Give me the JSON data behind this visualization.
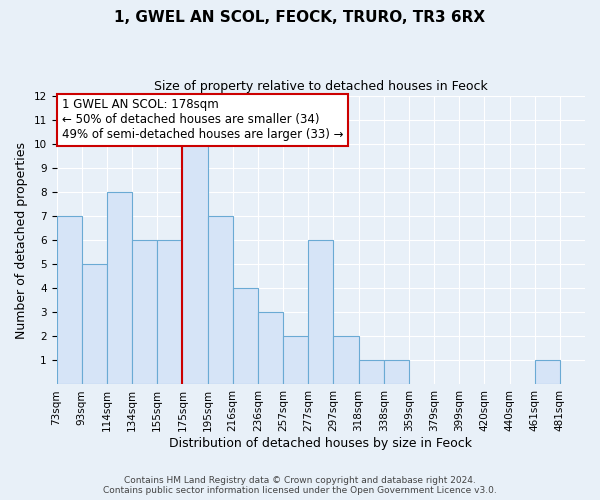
{
  "title": "1, GWEL AN SCOL, FEOCK, TRURO, TR3 6RX",
  "subtitle": "Size of property relative to detached houses in Feock",
  "xlabel": "Distribution of detached houses by size in Feock",
  "ylabel": "Number of detached properties",
  "bin_labels": [
    "73sqm",
    "93sqm",
    "114sqm",
    "134sqm",
    "155sqm",
    "175sqm",
    "195sqm",
    "216sqm",
    "236sqm",
    "257sqm",
    "277sqm",
    "297sqm",
    "318sqm",
    "338sqm",
    "359sqm",
    "379sqm",
    "399sqm",
    "420sqm",
    "440sqm",
    "461sqm",
    "481sqm"
  ],
  "counts": [
    7,
    5,
    8,
    6,
    6,
    10,
    7,
    4,
    3,
    2,
    6,
    2,
    1,
    1,
    0,
    0,
    0,
    0,
    0,
    1,
    0
  ],
  "bar_facecolor": "#d6e4f7",
  "bar_edgecolor": "#6aaad4",
  "red_line_after_bin": 5,
  "red_line_color": "#cc0000",
  "annotation_text": "1 GWEL AN SCOL: 178sqm\n← 50% of detached houses are smaller (34)\n49% of semi-detached houses are larger (33) →",
  "annotation_box_edgecolor": "#cc0000",
  "ylim": [
    0,
    12
  ],
  "yticks": [
    1,
    2,
    3,
    4,
    5,
    6,
    7,
    8,
    9,
    10,
    11,
    12
  ],
  "footer_line1": "Contains HM Land Registry data © Crown copyright and database right 2024.",
  "footer_line2": "Contains public sector information licensed under the Open Government Licence v3.0.",
  "background_color": "#e8f0f8",
  "plot_background_color": "#e8f0f8",
  "grid_color": "#ffffff",
  "title_fontsize": 11,
  "subtitle_fontsize": 9,
  "axis_label_fontsize": 9,
  "tick_fontsize": 7.5,
  "annotation_fontsize": 8.5,
  "footer_fontsize": 6.5
}
